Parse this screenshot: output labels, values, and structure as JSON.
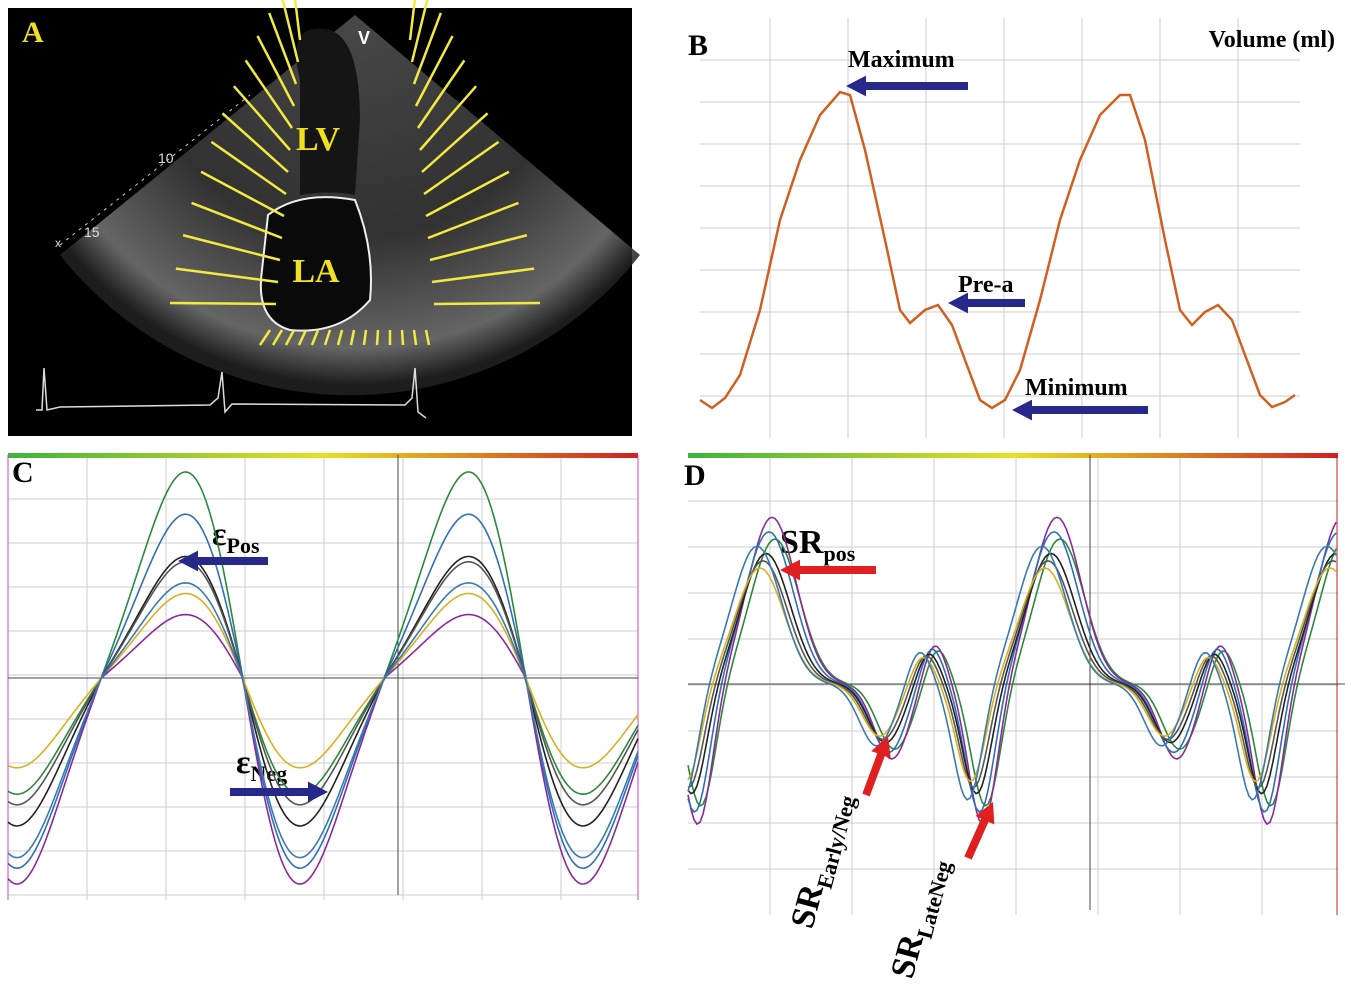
{
  "panels": {
    "a": {
      "label": "A",
      "lv": "LV",
      "la": "LA",
      "apex_marker": "V",
      "depth_labels": [
        "10",
        "15"
      ],
      "cursor": "x"
    },
    "b": {
      "label": "B",
      "axis_title": "Volume (ml)",
      "annotations": [
        "Maximum",
        "Pre-a",
        "Minimum"
      ]
    },
    "c": {
      "label": "C",
      "annotations": [
        {
          "symbol": "ε",
          "subscript": "Pos"
        },
        {
          "symbol": "ε",
          "subscript": "Neg"
        }
      ]
    },
    "d": {
      "label": "D",
      "annotations": [
        {
          "symbol": "SR",
          "subscript": "pos"
        },
        {
          "symbol": "SR",
          "subscript": "Early/Neg"
        },
        {
          "symbol": "SR",
          "subscript": "LateNeg"
        }
      ]
    }
  }
}
